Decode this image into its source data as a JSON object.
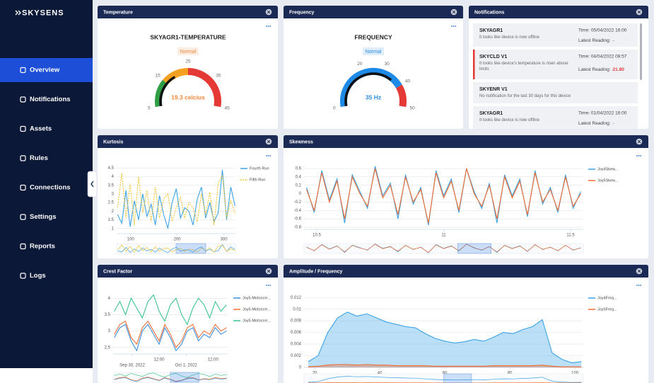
{
  "sidebar": {
    "logo": "SKYSENS",
    "menu": [
      "Overview",
      "Notifications",
      "Assets",
      "Rules",
      "Connections",
      "Settings",
      "Reports",
      "Logs"
    ],
    "active": 0
  },
  "notifications": {
    "title": "Notifications",
    "items": [
      {
        "device": "SKYAGR1",
        "message": "It looks like device is now offline",
        "time": "Time: 05/04/2022 16:00",
        "reading_label": "Latest Reading:",
        "reading": "-",
        "alert": false
      },
      {
        "device": "SKYCLD V1",
        "message": "It looks like device's temperature is risen above limits",
        "time": "Time: 04/04/2022 08:57",
        "reading_label": "Latest Reading:",
        "reading": "21.80",
        "alert": true
      },
      {
        "device": "SKYENR V1",
        "message": "No notification for the last 30 days for this device",
        "alert": false
      },
      {
        "device": "SKYAGR1",
        "message": "It looks like device is now offline",
        "time": "Time: 01/04/2022 16:00",
        "reading_label": "Latest Reading:",
        "reading": "-",
        "alert": false
      }
    ]
  },
  "chart_data": [
    {
      "type": "gauge",
      "title": "Temperature",
      "gauge_label": "SKYAGR1-TEMPERATURE",
      "status": "Normal",
      "status_color": "#f0883a",
      "value": 19.3,
      "value_label": "19.3 celcius",
      "value_color": "#f0883a",
      "range": [
        5,
        45
      ],
      "ticks": [
        5,
        15,
        25,
        35,
        45
      ],
      "bands": [
        {
          "from": 5,
          "to": 15,
          "color": "#2f9e44"
        },
        {
          "from": 15,
          "to": 25,
          "color": "#f5a020"
        },
        {
          "from": 25,
          "to": 45,
          "color": "#e53935"
        }
      ]
    },
    {
      "type": "gauge",
      "title": "Frequency",
      "gauge_label": "FREQUENCY",
      "status": "Normal",
      "status_color": "#2a8ae0",
      "value": 35,
      "value_label": "35 Hz",
      "value_color": "#2a8ae0",
      "range": [
        0,
        50
      ],
      "ticks": [
        0,
        20,
        30,
        40,
        50
      ],
      "bands": [
        {
          "from": 0,
          "to": 40,
          "color": "#1c8ae6"
        },
        {
          "from": 40,
          "to": 50,
          "color": "#e53935"
        }
      ]
    },
    {
      "type": "line",
      "title": "Kurtosis",
      "grid": true,
      "x": [
        72,
        81,
        90,
        99,
        108,
        117,
        126,
        135,
        144,
        153,
        162,
        171,
        180,
        189,
        198,
        207,
        216,
        225,
        234,
        243,
        252,
        261,
        270,
        279,
        288,
        297,
        306,
        315,
        324
      ],
      "xlim": [
        70,
        325
      ],
      "xticks": [
        100,
        200,
        300
      ],
      "ylim": [
        0.7,
        4.8
      ],
      "yticks": [
        1,
        1.5,
        2,
        2.5,
        3,
        3.5,
        4,
        4.5
      ],
      "series": [
        {
          "name": "Fourth Run",
          "color": "#3ba3e6",
          "dash": false,
          "values": [
            1.8,
            1.3,
            3.2,
            1.1,
            2.6,
            1.5,
            3.0,
            1.7,
            2.4,
            1.2,
            2.9,
            1.8,
            1.0,
            2.5,
            3.3,
            1.6,
            2.2,
            2.0,
            1.2,
            2.7,
            3.4,
            1.6,
            2.5,
            1.4,
            1.9,
            4.4,
            1.5,
            3.4,
            2.3
          ]
        },
        {
          "name": "Fifth Run",
          "color": "#f2c230",
          "dash": true,
          "values": [
            2.2,
            4.2,
            1.6,
            3.6,
            1.2,
            4.0,
            1.9,
            3.2,
            1.4,
            3.4,
            1.6,
            2.7,
            3.0,
            1.4,
            2.2,
            2.8,
            1.6,
            2.5,
            2.2,
            1.4,
            3.0,
            1.8,
            3.1,
            1.2,
            3.6,
            4.1,
            1.6,
            2.6,
            1.9
          ]
        }
      ]
    },
    {
      "type": "line",
      "title": "Skewness",
      "grid": true,
      "x": [
        10.46,
        10.49,
        10.52,
        10.55,
        10.58,
        10.61,
        10.64,
        10.67,
        10.7,
        10.73,
        10.76,
        10.79,
        10.82,
        10.85,
        10.88,
        10.91,
        10.94,
        10.97,
        11,
        11.03,
        11.06,
        11.09,
        11.12,
        11.15,
        11.18,
        11.21,
        11.24,
        11.27,
        11.3,
        11.33,
        11.36,
        11.39,
        11.42,
        11.45,
        11.48,
        11.51,
        11.54
      ],
      "xlim": [
        10.45,
        11.55
      ],
      "xticks": [
        10.5,
        11,
        11.5
      ],
      "ylim": [
        -0.85,
        0.7
      ],
      "yticks": [
        -0.8,
        -0.6,
        -0.4,
        -0.2,
        0,
        0.2,
        0.4,
        0.6
      ],
      "series": [
        {
          "name": "Joy4Skew...",
          "color": "#3ba3e6",
          "dash": false,
          "values": [
            0.15,
            -0.45,
            0.55,
            -0.15,
            0.35,
            -0.7,
            0.45,
            0.05,
            -0.35,
            0.65,
            -0.05,
            0.25,
            -0.6,
            0.45,
            -0.25,
            0.15,
            -0.75,
            0.55,
            -0.05,
            0.35,
            -0.45,
            0.6,
            0.05,
            -0.35,
            0.25,
            -0.7,
            0.45,
            -0.05,
            0.35,
            -0.55,
            0.55,
            -0.25,
            0.15,
            -0.45,
            0.45,
            -0.35,
            0.05
          ]
        },
        {
          "name": "Joy5Skew...",
          "color": "#f26a2e",
          "dash": false,
          "values": [
            0.1,
            -0.4,
            0.5,
            -0.2,
            0.3,
            -0.6,
            0.4,
            0.0,
            -0.3,
            0.6,
            -0.1,
            0.2,
            -0.5,
            0.4,
            -0.2,
            0.1,
            -0.7,
            0.5,
            -0.1,
            0.3,
            -0.4,
            0.6,
            0.0,
            -0.3,
            0.2,
            -0.6,
            0.4,
            -0.1,
            0.3,
            -0.5,
            0.5,
            -0.2,
            0.1,
            -0.4,
            0.4,
            -0.3,
            0.0
          ]
        }
      ]
    },
    {
      "type": "line",
      "title": "Crest Factor",
      "grid": true,
      "x": [
        -8,
        -5.5,
        -3,
        -0.5,
        2,
        4.5,
        7,
        9.5,
        12,
        14.5,
        17,
        19.5,
        22,
        24.5,
        27,
        29.5,
        32,
        34.5,
        37,
        39.5,
        42
      ],
      "xlim": [
        -8.5,
        42.5
      ],
      "xticks": [
        {
          "value": 0,
          "label": "Sep 30, 2022"
        },
        {
          "value": 12,
          "label": "12:00"
        },
        {
          "value": 24,
          "label": "Oct 1, 2022"
        },
        {
          "value": 36,
          "label": "12:00"
        }
      ],
      "ylim": [
        2.3,
        4.2
      ],
      "yticks": [
        2.5,
        3,
        3.5,
        4
      ],
      "series": [
        {
          "name": "Joy5-Motorcre...",
          "color": "#3a8fe0",
          "dash": false,
          "values": [
            2.8,
            3.1,
            3.2,
            2.7,
            2.4,
            3.0,
            3.2,
            2.9,
            2.6,
            3.1,
            2.8,
            2.4,
            2.6,
            3.0,
            3.1,
            2.7,
            2.9,
            2.8,
            3.1,
            2.9,
            3.0
          ]
        },
        {
          "name": "Joy5-Motorcre...",
          "color": "#f07036",
          "dash": false,
          "values": [
            2.9,
            3.2,
            3.3,
            2.8,
            2.6,
            3.1,
            3.3,
            3.0,
            2.7,
            3.2,
            2.9,
            2.5,
            2.7,
            3.1,
            3.2,
            2.8,
            3.0,
            2.9,
            3.2,
            3.0,
            3.1
          ]
        },
        {
          "name": "Joy5-Motorcre...",
          "color": "#3cc48f",
          "dash": false,
          "values": [
            3.6,
            3.9,
            3.5,
            4.0,
            3.7,
            3.4,
            3.9,
            4.1,
            3.6,
            3.3,
            3.8,
            4.0,
            3.5,
            3.2,
            3.7,
            4.0,
            3.8,
            3.4,
            3.9,
            3.6,
            3.8
          ]
        }
      ]
    },
    {
      "type": "area",
      "title": "Amplitude / Frequency",
      "grid": true,
      "x": [
        18,
        21,
        24,
        27,
        30,
        33,
        36,
        39,
        42,
        45,
        48,
        51,
        54,
        57,
        60,
        63,
        66,
        69,
        72,
        75,
        78,
        81,
        84,
        87,
        90,
        93,
        96,
        99,
        102
      ],
      "xlim": [
        16.7,
        102.6
      ],
      "xticks": [
        20,
        40,
        60,
        80,
        100
      ],
      "ylim": [
        0,
        0.013
      ],
      "yticks": [
        0,
        0.002,
        0.004,
        0.006,
        0.008,
        0.01,
        0.012
      ],
      "series": [
        {
          "name": "Joy4Freq...",
          "color": "#3ba3e6",
          "dash": false,
          "values": [
            0.001,
            0.002,
            0.006,
            0.0085,
            0.0095,
            0.0088,
            0.0092,
            0.0085,
            0.0078,
            0.0074,
            0.007,
            0.0068,
            0.0058,
            0.005,
            0.0045,
            0.0042,
            0.0044,
            0.0048,
            0.0045,
            0.0052,
            0.006,
            0.0058,
            0.0065,
            0.007,
            0.0082,
            0.0025,
            0.0014,
            0.0008,
            0.001
          ]
        },
        {
          "name": "Joy5Freq...",
          "color": "#f26a2e",
          "dash": false,
          "values": [
            0.0001,
            0.0002,
            0.0004,
            0.0005,
            0.0005,
            0.0004,
            0.0005,
            0.0004,
            0.0004,
            0.0003,
            0.0003,
            0.0003,
            0.0003,
            0.0002,
            0.0002,
            0.0002,
            0.0002,
            0.0002,
            0.0002,
            0.0003,
            0.0003,
            0.0003,
            0.0003,
            0.0003,
            0.0004,
            0.0002,
            0.0001,
            0.0001,
            0.0001
          ]
        }
      ]
    }
  ]
}
